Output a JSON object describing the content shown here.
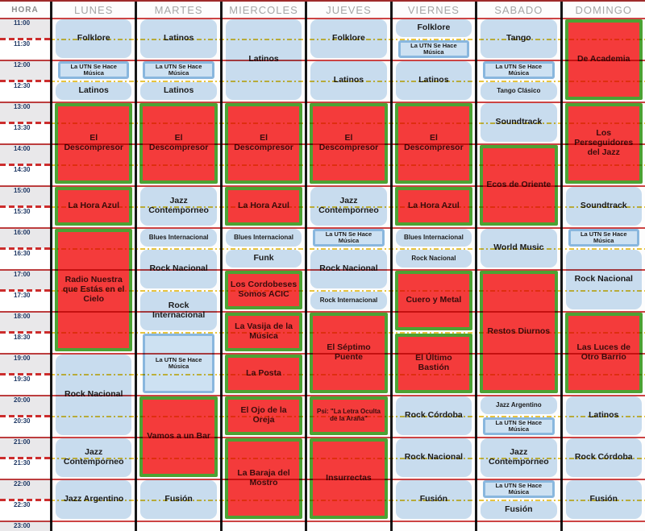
{
  "header": {
    "hora_label": "HORA",
    "days": [
      "LUNES",
      "MARTES",
      "MIERCOLES",
      "JUEVES",
      "VIERNES",
      "SABADO",
      "DOMINGO"
    ]
  },
  "times": [
    "11:00",
    "11:30",
    "12:00",
    "12:30",
    "13:00",
    "13:30",
    "14:00",
    "14:30",
    "15:00",
    "15:30",
    "16:00",
    "16:30",
    "17:00",
    "17:30",
    "18:00",
    "18:30",
    "19:00",
    "19:30",
    "20:00",
    "20:30",
    "21:00",
    "21:30",
    "22:00",
    "22:30",
    "23:00"
  ],
  "colors": {
    "cell_blue": "#C8DCEE",
    "cell_red": "#F43B3B",
    "highlight_green_border": "#4CA233",
    "utn_blue_border": "#89B7DE",
    "hour_line_red": "#CE4343",
    "half_hour_yellow": "#E9C63E",
    "time_text_navy": "#1F3864",
    "header_gray": "#A6A6A6"
  },
  "schedule": {
    "days": [
      {
        "name": "LUNES",
        "programs": [
          {
            "title": "Folklore",
            "start": "11:00",
            "end": "12:00",
            "type": "blue"
          },
          {
            "title": "La UTN Se Hace Música",
            "start": "12:00",
            "end": "12:30",
            "type": "utn"
          },
          {
            "title": "Latinos",
            "start": "12:30",
            "end": "13:00",
            "type": "blue"
          },
          {
            "title": "El Descompresor",
            "start": "13:00",
            "end": "15:00",
            "type": "red"
          },
          {
            "title": "La Hora Azul",
            "start": "15:00",
            "end": "16:00",
            "type": "red"
          },
          {
            "title": "Radio Nuestra que Estás en el Cielo",
            "start": "16:00",
            "end": "19:00",
            "type": "red"
          },
          {
            "title": "Rock Nacional",
            "start": "19:00",
            "end": "21:00",
            "type": "blue"
          },
          {
            "title": "Jazz Contemporneo",
            "start": "21:00",
            "end": "22:00",
            "type": "blue"
          },
          {
            "title": "Jazz Argentino",
            "start": "22:00",
            "end": "23:00",
            "type": "blue"
          }
        ]
      },
      {
        "name": "MARTES",
        "programs": [
          {
            "title": "Latinos",
            "start": "11:00",
            "end": "12:00",
            "type": "blue"
          },
          {
            "title": "La UTN Se Hace Música",
            "start": "12:00",
            "end": "12:30",
            "type": "utn"
          },
          {
            "title": "Latinos",
            "start": "12:30",
            "end": "13:00",
            "type": "blue"
          },
          {
            "title": "El Descompresor",
            "start": "13:00",
            "end": "15:00",
            "type": "red"
          },
          {
            "title": "Jazz Contemporneo",
            "start": "15:00",
            "end": "16:00",
            "type": "blue"
          },
          {
            "title": "Blues Internacional",
            "start": "16:00",
            "end": "16:30",
            "type": "blue"
          },
          {
            "title": "Rock Nacional",
            "start": "16:30",
            "end": "17:30",
            "type": "blue"
          },
          {
            "title": "Rock Internacional",
            "start": "17:30",
            "end": "18:30",
            "type": "blue"
          },
          {
            "title": "La UTN Se Hace Música",
            "start": "18:30",
            "end": "20:00",
            "type": "utn"
          },
          {
            "title": "Vamos a un Bar",
            "start": "20:00",
            "end": "22:00",
            "type": "red"
          },
          {
            "title": "Fusión",
            "start": "22:00",
            "end": "23:00",
            "type": "blue"
          }
        ]
      },
      {
        "name": "MIERCOLES",
        "programs": [
          {
            "title": "Latinos",
            "start": "11:00",
            "end": "13:00",
            "type": "blue"
          },
          {
            "title": "El Descompresor",
            "start": "13:00",
            "end": "15:00",
            "type": "red"
          },
          {
            "title": "La Hora Azul",
            "start": "15:00",
            "end": "16:00",
            "type": "red"
          },
          {
            "title": "Blues Internacional",
            "start": "16:00",
            "end": "16:30",
            "type": "blue"
          },
          {
            "title": "Funk",
            "start": "16:30",
            "end": "17:00",
            "type": "blue"
          },
          {
            "title": "Los Cordobeses Somos ACIC",
            "start": "17:00",
            "end": "18:00",
            "type": "red"
          },
          {
            "title": "La Vasija de la Música",
            "start": "18:00",
            "end": "19:00",
            "type": "red"
          },
          {
            "title": "La Posta",
            "start": "19:00",
            "end": "20:00",
            "type": "red"
          },
          {
            "title": "El Ojo de la Oreja",
            "start": "20:00",
            "end": "21:00",
            "type": "red"
          },
          {
            "title": "La Baraja del Mostro",
            "start": "21:00",
            "end": "23:00",
            "type": "red"
          }
        ]
      },
      {
        "name": "JUEVES",
        "programs": [
          {
            "title": "Folklore",
            "start": "11:00",
            "end": "12:00",
            "type": "blue"
          },
          {
            "title": "Latinos",
            "start": "12:00",
            "end": "13:00",
            "type": "blue"
          },
          {
            "title": "El Descompresor",
            "start": "13:00",
            "end": "15:00",
            "type": "red"
          },
          {
            "title": "Jazz Contemporneo",
            "start": "15:00",
            "end": "16:00",
            "type": "blue"
          },
          {
            "title": "La UTN Se Hace Música",
            "start": "16:00",
            "end": "16:30",
            "type": "utn"
          },
          {
            "title": "Rock Nacional",
            "start": "16:30",
            "end": "17:30",
            "type": "blue"
          },
          {
            "title": "Rock Internacional",
            "start": "17:30",
            "end": "18:00",
            "type": "blue"
          },
          {
            "title": "El Séptimo Puente",
            "start": "18:00",
            "end": "20:00",
            "type": "red"
          },
          {
            "title": "Psi: \"La Letra Oculta de la Araña\"",
            "start": "20:00",
            "end": "21:00",
            "type": "red"
          },
          {
            "title": "Insurrectas",
            "start": "21:00",
            "end": "23:00",
            "type": "red"
          }
        ]
      },
      {
        "name": "VIERNES",
        "programs": [
          {
            "title": "Folklore",
            "start": "11:00",
            "end": "11:30",
            "type": "blue"
          },
          {
            "title": "La UTN Se Hace Música",
            "start": "11:30",
            "end": "12:00",
            "type": "utn"
          },
          {
            "title": "Latinos",
            "start": "12:00",
            "end": "13:00",
            "type": "blue"
          },
          {
            "title": "El Descompresor",
            "start": "13:00",
            "end": "15:00",
            "type": "red"
          },
          {
            "title": "La Hora Azul",
            "start": "15:00",
            "end": "16:00",
            "type": "red"
          },
          {
            "title": "Blues Internacional",
            "start": "16:00",
            "end": "16:30",
            "type": "blue"
          },
          {
            "title": "Rock Nacional",
            "start": "16:30",
            "end": "17:00",
            "type": "blue"
          },
          {
            "title": "Cuero y Metal",
            "start": "17:00",
            "end": "18:30",
            "type": "red"
          },
          {
            "title": "El Último Bastión",
            "start": "18:30",
            "end": "20:00",
            "type": "red"
          },
          {
            "title": "Rock Córdoba",
            "start": "20:00",
            "end": "21:00",
            "type": "blue"
          },
          {
            "title": "Rock Nacional",
            "start": "21:00",
            "end": "22:00",
            "type": "blue"
          },
          {
            "title": "Fusión",
            "start": "22:00",
            "end": "23:00",
            "type": "blue"
          }
        ]
      },
      {
        "name": "SABADO",
        "programs": [
          {
            "title": "Tango",
            "start": "11:00",
            "end": "12:00",
            "type": "blue"
          },
          {
            "title": "La UTN Se Hace Música",
            "start": "12:00",
            "end": "12:30",
            "type": "utn"
          },
          {
            "title": "Tango Clásico",
            "start": "12:30",
            "end": "13:00",
            "type": "blue"
          },
          {
            "title": "Soundtrack",
            "start": "13:00",
            "end": "14:00",
            "type": "blue"
          },
          {
            "title": "Ecos de Oriente",
            "start": "14:00",
            "end": "16:00",
            "type": "red"
          },
          {
            "title": "World Music",
            "start": "16:00",
            "end": "17:00",
            "type": "blue"
          },
          {
            "title": "Restos Diurnos",
            "start": "17:00",
            "end": "20:00",
            "type": "red"
          },
          {
            "title": "Jazz Argentino",
            "start": "20:00",
            "end": "20:30",
            "type": "blue"
          },
          {
            "title": "La UTN Se Hace Música",
            "start": "20:30",
            "end": "21:00",
            "type": "utn"
          },
          {
            "title": "Jazz Contemporneo",
            "start": "21:00",
            "end": "22:00",
            "type": "blue"
          },
          {
            "title": "La UTN Se Hace Música",
            "start": "22:00",
            "end": "22:30",
            "type": "utn"
          },
          {
            "title": "Fusión",
            "start": "22:30",
            "end": "23:00",
            "type": "blue"
          }
        ]
      },
      {
        "name": "DOMINGO",
        "programs": [
          {
            "title": "De Academia",
            "start": "11:00",
            "end": "13:00",
            "type": "red"
          },
          {
            "title": "Los Perseguidores del Jazz",
            "start": "13:00",
            "end": "15:00",
            "type": "red"
          },
          {
            "title": "Soundtrack",
            "start": "15:00",
            "end": "16:00",
            "type": "blue"
          },
          {
            "title": "La UTN Se Hace Música",
            "start": "16:00",
            "end": "16:30",
            "type": "utn"
          },
          {
            "title": "Rock Nacional",
            "start": "16:30",
            "end": "18:00",
            "type": "blue"
          },
          {
            "title": "Las Luces de Otro Barrio",
            "start": "18:00",
            "end": "20:00",
            "type": "red"
          },
          {
            "title": "Latinos",
            "start": "20:00",
            "end": "21:00",
            "type": "blue"
          },
          {
            "title": "Rock Córdoba",
            "start": "21:00",
            "end": "22:00",
            "type": "blue"
          },
          {
            "title": "Fusión",
            "start": "22:00",
            "end": "23:00",
            "type": "blue"
          }
        ]
      }
    ]
  }
}
